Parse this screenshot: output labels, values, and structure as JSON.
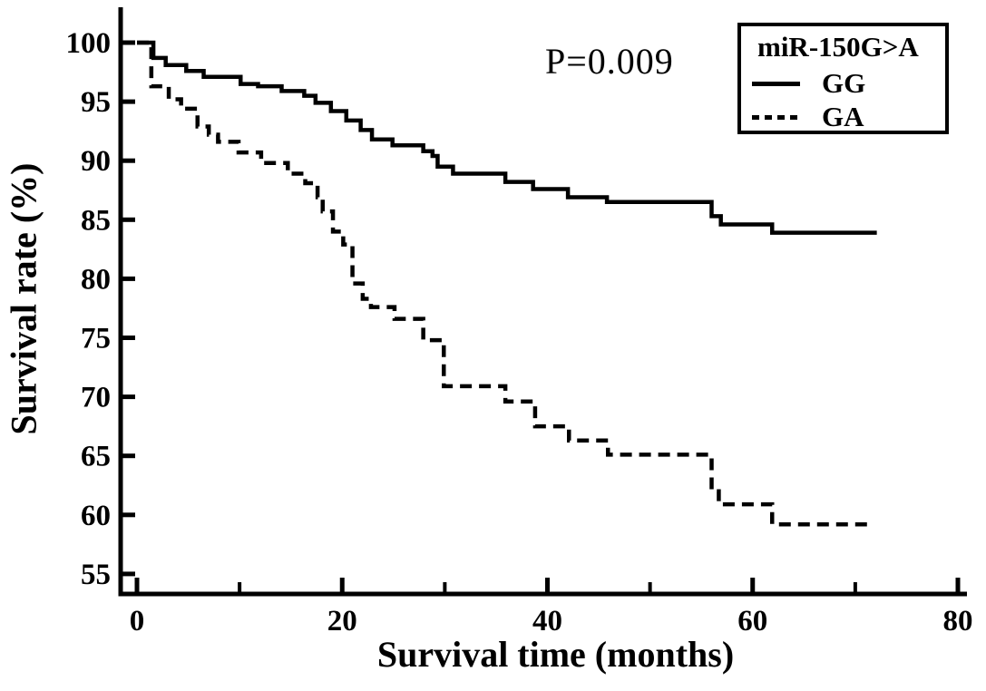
{
  "window": {
    "background": "#ffffff"
  },
  "legend": {
    "title": "miR-150G>A",
    "entries": [
      {
        "label": "GG",
        "line_style": "solid"
      },
      {
        "label": "GA",
        "line_style": "dashed"
      }
    ]
  },
  "chart_data": {
    "type": "line",
    "subtype": "kaplan_meier_step",
    "title": "",
    "p_value_text": "P=0.009",
    "xlabel": "Survival time (months)",
    "ylabel": "Survival rate (%)",
    "xlim": [
      0,
      80
    ],
    "ylim": [
      55,
      100
    ],
    "xticks": [
      0,
      20,
      40,
      60,
      80
    ],
    "xticks_minor": [
      10,
      30,
      50,
      70
    ],
    "yticks": [
      100,
      95,
      90,
      85,
      80,
      75,
      70,
      65,
      60,
      55
    ],
    "grid": false,
    "legend_position": "top-right",
    "line_color": "#000000",
    "series": [
      {
        "name": "GG",
        "style": "solid",
        "points": [
          [
            0,
            100
          ],
          [
            1.6,
            98.7
          ],
          [
            2.8,
            98.1
          ],
          [
            4.8,
            97.6
          ],
          [
            6.5,
            97.1
          ],
          [
            10.1,
            96.5
          ],
          [
            11.8,
            96.3
          ],
          [
            14.1,
            95.9
          ],
          [
            16.3,
            95.5
          ],
          [
            17.4,
            94.9
          ],
          [
            18.9,
            94.2
          ],
          [
            20.4,
            93.4
          ],
          [
            21.8,
            92.6
          ],
          [
            22.9,
            91.8
          ],
          [
            24.9,
            91.3
          ],
          [
            27.9,
            90.8
          ],
          [
            28.8,
            90.4
          ],
          [
            29.3,
            89.5
          ],
          [
            30.8,
            88.9
          ],
          [
            35.9,
            88.2
          ],
          [
            38.6,
            87.6
          ],
          [
            42.0,
            86.9
          ],
          [
            45.8,
            86.5
          ],
          [
            56.0,
            85.3
          ],
          [
            56.9,
            84.6
          ],
          [
            61.9,
            83.9
          ],
          [
            72.1,
            83.9
          ]
        ]
      },
      {
        "name": "GA",
        "style": "dashed",
        "points": [
          [
            0,
            100
          ],
          [
            1.4,
            96.3
          ],
          [
            3.1,
            95.2
          ],
          [
            4.3,
            94.4
          ],
          [
            5.9,
            92.9
          ],
          [
            7.0,
            92.2
          ],
          [
            7.9,
            91.6
          ],
          [
            9.9,
            90.7
          ],
          [
            12.1,
            89.8
          ],
          [
            14.7,
            88.9
          ],
          [
            16.4,
            88.1
          ],
          [
            17.6,
            86.9
          ],
          [
            18.1,
            85.7
          ],
          [
            19.1,
            84.0
          ],
          [
            20.1,
            82.9
          ],
          [
            21.0,
            79.6
          ],
          [
            22.0,
            78.3
          ],
          [
            22.8,
            77.6
          ],
          [
            25.1,
            76.6
          ],
          [
            27.9,
            74.8
          ],
          [
            29.9,
            70.9
          ],
          [
            35.9,
            69.6
          ],
          [
            38.8,
            67.5
          ],
          [
            42.1,
            66.3
          ],
          [
            45.9,
            65.1
          ],
          [
            56.0,
            62.0
          ],
          [
            56.7,
            60.9
          ],
          [
            61.9,
            59.2
          ],
          [
            71.5,
            59.2
          ]
        ]
      }
    ]
  }
}
